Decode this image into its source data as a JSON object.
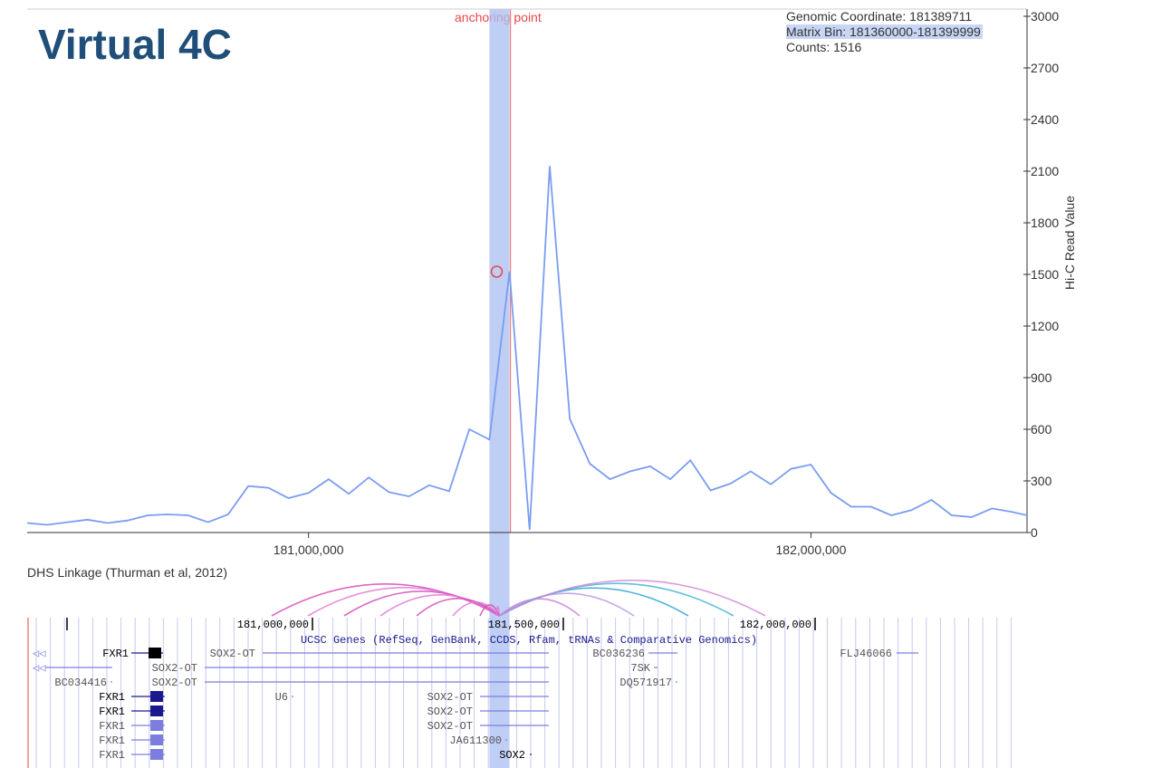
{
  "title": "Virtual 4C",
  "anchoring_label": "anchoring point",
  "readout": {
    "coordinate": "Genomic Coordinate: 181389711",
    "bin": "Matrix Bin: 181360000-181399999",
    "counts": "Counts: 1516"
  },
  "colors": {
    "line": "#7a9df0",
    "anchor_band": "#a9bdf2",
    "anchor_line": "#f07a7a",
    "title": "#1f4e79",
    "gene_dark": "#1a1a8c",
    "gene_light": "#7d7de0"
  },
  "chart_data": {
    "type": "line",
    "title": "",
    "xlabel": "",
    "ylabel": "Hi-C Read Value",
    "xlim": [
      180440000,
      182430000
    ],
    "ylim": [
      0,
      3000
    ],
    "yticks": [
      0,
      300,
      600,
      900,
      1200,
      1500,
      1800,
      2100,
      2400,
      2700,
      3000
    ],
    "xticks": [
      {
        "value": 181000000,
        "label": "181,000,000"
      },
      {
        "value": 182000000,
        "label": "182,000,000"
      }
    ],
    "anchor_bin": [
      181360000,
      181399999
    ],
    "highlight_point": {
      "x": 181380000,
      "y": 1516
    },
    "series": [
      {
        "x": [
          180440000,
          180480000,
          180520000,
          180560000,
          180600000,
          180640000,
          180680000,
          180720000,
          180760000,
          180800000,
          180840000,
          180880000,
          180920000,
          180960000,
          181000000,
          181040000,
          181080000,
          181120000,
          181160000,
          181200000,
          181240000,
          181280000,
          181320000,
          181360000,
          181400000,
          181440000,
          181480000,
          181520000,
          181560000,
          181600000,
          181640000,
          181680000,
          181720000,
          181760000,
          181800000,
          181840000,
          181880000,
          181920000,
          181960000,
          182000000,
          182040000,
          182080000,
          182120000,
          182160000,
          182200000,
          182240000,
          182280000,
          182320000,
          182360000,
          182400000,
          182430000
        ],
        "y": [
          55,
          45,
          60,
          75,
          55,
          70,
          100,
          105,
          100,
          60,
          105,
          270,
          260,
          200,
          230,
          310,
          225,
          320,
          235,
          210,
          275,
          240,
          600,
          540,
          1516,
          15,
          2130,
          660,
          400,
          310,
          355,
          385,
          310,
          420,
          245,
          285,
          355,
          280,
          370,
          395,
          230,
          150,
          150,
          100,
          130,
          190,
          100,
          90,
          140,
          120,
          100
        ]
      }
    ]
  },
  "dhs_title": "DHS Linkage (Thurman et al, 2012)",
  "browser": {
    "ruler": [
      "181,000,000",
      "181,500,000",
      "182,000,000"
    ],
    "track_title": "UCSC Genes (RefSeq, GenBank, CCDS, Rfam, tRNAs & Comparative Genomics)",
    "genes": [
      {
        "label": "FXR1",
        "tone": "dark"
      },
      {
        "label": "SOX2-OT",
        "tone": "light"
      },
      {
        "label": "BC036236",
        "tone": "light"
      },
      {
        "label": "FLJ46066",
        "tone": "light"
      },
      {
        "label": "SOX2-OT",
        "tone": "light"
      },
      {
        "label": "7SK",
        "tone": "light"
      },
      {
        "label": "BC034416",
        "tone": "light"
      },
      {
        "label": "SOX2-OT",
        "tone": "light"
      },
      {
        "label": "DQ571917",
        "tone": "light"
      },
      {
        "label": "FXR1",
        "tone": "dark"
      },
      {
        "label": "U6",
        "tone": "light"
      },
      {
        "label": "SOX2-OT",
        "tone": "light"
      },
      {
        "label": "FXR1",
        "tone": "dark"
      },
      {
        "label": "SOX2-OT",
        "tone": "light"
      },
      {
        "label": "FXR1",
        "tone": "light"
      },
      {
        "label": "SOX2-OT",
        "tone": "light"
      },
      {
        "label": "FXR1",
        "tone": "light"
      },
      {
        "label": "JA611300",
        "tone": "light"
      },
      {
        "label": "FXR1",
        "tone": "light"
      },
      {
        "label": "SOX2",
        "tone": "dark"
      }
    ]
  }
}
